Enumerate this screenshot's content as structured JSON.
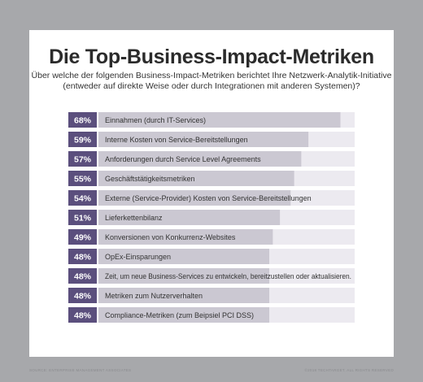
{
  "footer": {
    "source": "SOURCE: ENTERPRISE MANAGEMENT ASSOCIATES",
    "copyright": "©2018 TECHTARGET. ALL RIGHTS RESERVED"
  },
  "colors": {
    "page_background": "#a7a8ab",
    "panel_background": "#ffffff",
    "badge": "#5b4f7d",
    "bar_fill": "#cbc8d2",
    "bar_track": "#eceaf0",
    "title": "#2b2b2b",
    "label_text": "#333333"
  },
  "chart_data": {
    "type": "bar",
    "orientation": "horizontal",
    "title": "Die Top-Business-Impact-Metriken",
    "subtitle": "Über welche der folgenden Business-Impact-Metriken berichtet Ihre Netzwerk-Analytik-Initiative (entweder auf direkte Weise oder durch Integrationen mit anderen Systemen)?",
    "unit": "%",
    "xlim": [
      0,
      72
    ],
    "legend": "none",
    "grid": false,
    "categories": [
      "Einnahmen (durch IT-Services)",
      "Interne Kosten von Service-Bereitstellungen",
      "Anforderungen durch Service Level Agreements",
      "Geschäftstätigkeitsmetriken",
      "Externe (Service-Provider) Kosten von Service-Bereitstellungen",
      "Lieferkettenbilanz",
      "Konversionen von Konkurrenz-Websites",
      "OpEx-Einsparungen",
      "Zeit, um neue Business-Services zu entwickeln, bereitzustellen oder aktualisieren.",
      "Metriken zum Nutzerverhalten",
      "Compliance-Metriken (zum Beipsiel PCI DSS)"
    ],
    "values": [
      68,
      59,
      57,
      55,
      54,
      51,
      49,
      48,
      48,
      48,
      48
    ],
    "value_labels": [
      "68%",
      "59%",
      "57%",
      "55%",
      "54%",
      "51%",
      "49%",
      "48%",
      "48%",
      "48%",
      "48%"
    ]
  }
}
